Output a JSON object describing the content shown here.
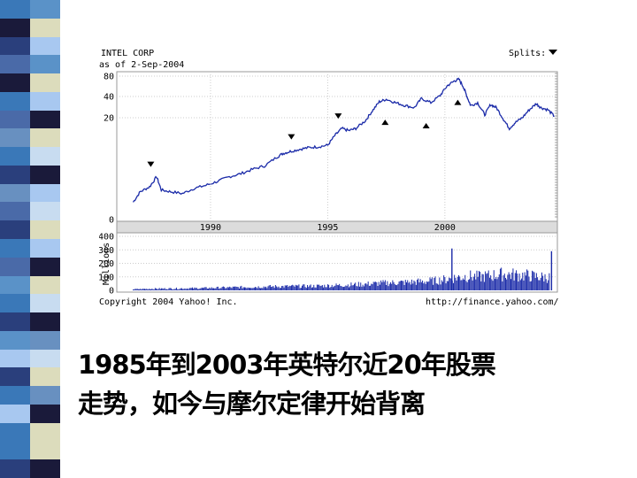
{
  "stripe_colors": [
    "#3a78b8",
    "#dcdcbc",
    "#2a3f7c",
    "#5a92c8",
    "#1a1a3a",
    "#a8c8f0",
    "#4a6aa8",
    "#dcdcbc",
    "#3a78b8",
    "#1a1a3a",
    "#6890c0",
    "#c8dcf0",
    "#2a3f7c",
    "#a8c8f0",
    "#4a6aa8",
    "#dcdcbc",
    "#3a78b8",
    "#1a1a3a",
    "#5a92c8",
    "#c8dcf0",
    "#2a3f7c",
    "#6890c0",
    "#a8c8f0",
    "#dcdcbc",
    "#3a78b8",
    "#1a1a3a"
  ],
  "chart_data": {
    "type": "line",
    "header": {
      "company": "INTEL CORP",
      "date": "as of 2-Sep-2004",
      "splits_label": "Splits:"
    },
    "price": {
      "y_ticks": [
        "80",
        "40",
        "20",
        "0"
      ],
      "scale": "log",
      "x_ticks": [
        "1990",
        "1995",
        "2000"
      ],
      "series_color": "#1a2aa8",
      "points": [
        [
          1986.7,
          1.2
        ],
        [
          1987.0,
          1.7
        ],
        [
          1987.4,
          2.0
        ],
        [
          1987.7,
          2.8
        ],
        [
          1987.9,
          1.8
        ],
        [
          1988.3,
          1.7
        ],
        [
          1988.8,
          1.6
        ],
        [
          1989.3,
          1.9
        ],
        [
          1989.8,
          2.1
        ],
        [
          1990.3,
          2.4
        ],
        [
          1990.8,
          2.8
        ],
        [
          1991.3,
          3.1
        ],
        [
          1991.8,
          3.6
        ],
        [
          1992.3,
          4.0
        ],
        [
          1992.8,
          5.3
        ],
        [
          1993.1,
          6.1
        ],
        [
          1993.4,
          6.5
        ],
        [
          1993.8,
          7.0
        ],
        [
          1994.2,
          7.4
        ],
        [
          1994.6,
          7.6
        ],
        [
          1995.0,
          8.0
        ],
        [
          1995.3,
          11.0
        ],
        [
          1995.6,
          14.0
        ],
        [
          1995.9,
          13.0
        ],
        [
          1996.2,
          14.0
        ],
        [
          1996.6,
          18.0
        ],
        [
          1996.9,
          25.0
        ],
        [
          1997.2,
          34.0
        ],
        [
          1997.5,
          37.0
        ],
        [
          1997.9,
          33.0
        ],
        [
          1998.3,
          30.0
        ],
        [
          1998.7,
          28.0
        ],
        [
          1999.0,
          38.0
        ],
        [
          1999.4,
          33.0
        ],
        [
          1999.8,
          42.0
        ],
        [
          2000.1,
          58.0
        ],
        [
          2000.4,
          68.0
        ],
        [
          2000.6,
          72.0
        ],
        [
          2000.8,
          55.0
        ],
        [
          2000.95,
          40.0
        ],
        [
          2001.1,
          30.0
        ],
        [
          2001.4,
          33.0
        ],
        [
          2001.7,
          22.0
        ],
        [
          2001.95,
          31.0
        ],
        [
          2002.2,
          28.0
        ],
        [
          2002.5,
          19.0
        ],
        [
          2002.75,
          14.0
        ],
        [
          2003.0,
          17.0
        ],
        [
          2003.3,
          20.0
        ],
        [
          2003.6,
          26.0
        ],
        [
          2003.9,
          32.0
        ],
        [
          2004.1,
          28.0
        ],
        [
          2004.4,
          26.0
        ],
        [
          2004.67,
          21.0
        ]
      ],
      "split_markers": [
        1987.45,
        1993.45,
        1995.45,
        1997.45,
        1999.2,
        2000.55
      ]
    },
    "volume": {
      "y_axis_label": "Millions",
      "y_ticks": [
        "400",
        "300",
        "200",
        "100",
        "0"
      ],
      "bar_color": "#1a2aa8",
      "points": [
        [
          1986.7,
          8
        ],
        [
          1987.5,
          12
        ],
        [
          1988.5,
          14
        ],
        [
          1989.5,
          16
        ],
        [
          1990.5,
          20
        ],
        [
          1991.5,
          24
        ],
        [
          1992.5,
          28
        ],
        [
          1993.5,
          30
        ],
        [
          1994.5,
          32
        ],
        [
          1995.5,
          38
        ],
        [
          1996.5,
          45
        ],
        [
          1997.5,
          55
        ],
        [
          1998.5,
          60
        ],
        [
          1999.5,
          70
        ],
        [
          2000.0,
          80
        ],
        [
          2000.5,
          95
        ],
        [
          2001.0,
          105
        ],
        [
          2001.5,
          100
        ],
        [
          2002.0,
          110
        ],
        [
          2002.5,
          120
        ],
        [
          2003.0,
          115
        ],
        [
          2003.5,
          110
        ],
        [
          2004.0,
          100
        ],
        [
          2004.5,
          95
        ]
      ],
      "spikes": [
        [
          2000.3,
          310
        ],
        [
          2004.55,
          290
        ]
      ]
    },
    "footer": {
      "copyright": "Copyright 2004 Yahoo! Inc.",
      "source": "http://finance.yahoo.com/"
    }
  },
  "caption": {
    "line1": "1985年到2003年英特尔近20年股票",
    "line2": "走势，如今与摩尔定律开始背离"
  }
}
